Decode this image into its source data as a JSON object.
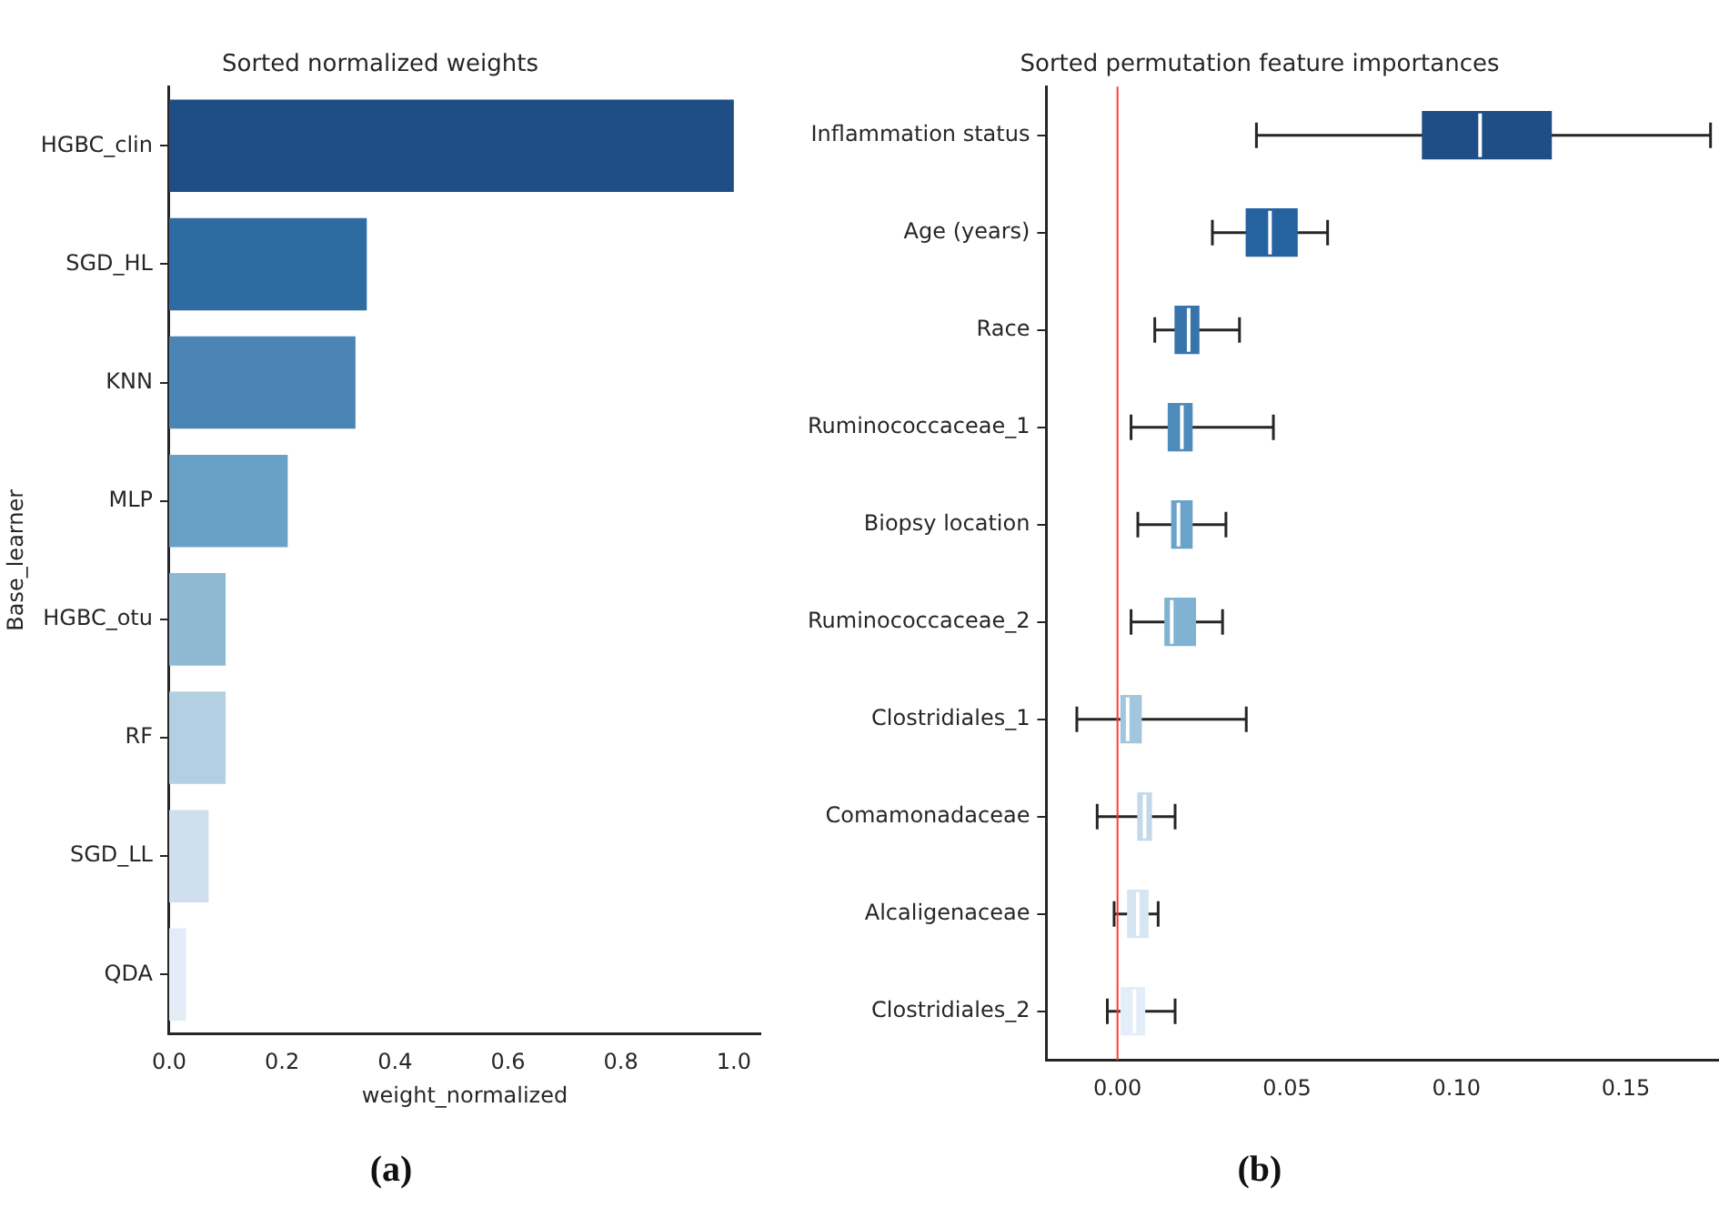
{
  "chart_data": [
    {
      "type": "bar",
      "orientation": "horizontal",
      "title": "Sorted normalized weights",
      "xlabel": "weight_normalized",
      "ylabel": "Base_learner",
      "categories": [
        "HGBC_clin",
        "SGD_HL",
        "KNN",
        "MLP",
        "HGBC_otu",
        "RF",
        "SGD_LL",
        "QDA"
      ],
      "values": [
        1.0,
        0.35,
        0.33,
        0.21,
        0.1,
        0.1,
        0.07,
        0.03
      ],
      "colors": [
        "#1f4e86",
        "#2d6ba0",
        "#4a85b5",
        "#68a0c6",
        "#8fb9d3",
        "#b3cfe2",
        "#cfdfee",
        "#e4edf7"
      ],
      "xlim": [
        0,
        1.047
      ],
      "xticks": [
        {
          "value": 0,
          "label": "0.0"
        },
        {
          "value": 0.2,
          "label": "0.2"
        },
        {
          "value": 0.4,
          "label": "0.4"
        },
        {
          "value": 0.6,
          "label": "0.6"
        },
        {
          "value": 0.8,
          "label": "0.8"
        },
        {
          "value": 1,
          "label": "1.0"
        }
      ],
      "grid": false,
      "legend": false,
      "annotations": [
        "(a)"
      ]
    },
    {
      "type": "box",
      "orientation": "horizontal",
      "title": "Sorted permutation feature importances",
      "categories": [
        "Inflammation status",
        "Age (years)",
        "Race",
        "Ruminococcaceae_1",
        "Biopsy location",
        "Ruminococcaceae_2",
        "Clostridiales_1",
        "Comamonadaceae",
        "Alcaligenaceae",
        "Clostridiales_2"
      ],
      "boxes": [
        {
          "low": 0.041,
          "q1": 0.09,
          "median": 0.107,
          "q3": 0.128,
          "high": 0.175
        },
        {
          "low": 0.028,
          "q1": 0.038,
          "median": 0.045,
          "q3": 0.053,
          "high": 0.062
        },
        {
          "low": 0.011,
          "q1": 0.017,
          "median": 0.021,
          "q3": 0.024,
          "high": 0.036
        },
        {
          "low": 0.004,
          "q1": 0.015,
          "median": 0.019,
          "q3": 0.022,
          "high": 0.046
        },
        {
          "low": 0.006,
          "q1": 0.016,
          "median": 0.018,
          "q3": 0.022,
          "high": 0.032
        },
        {
          "low": 0.004,
          "q1": 0.014,
          "median": 0.016,
          "q3": 0.023,
          "high": 0.031
        },
        {
          "low": -0.012,
          "q1": 0.001,
          "median": 0.003,
          "q3": 0.007,
          "high": 0.038
        },
        {
          "low": -0.006,
          "q1": 0.006,
          "median": 0.008,
          "q3": 0.01,
          "high": 0.017
        },
        {
          "low": -0.001,
          "q1": 0.003,
          "median": 0.006,
          "q3": 0.009,
          "high": 0.012
        },
        {
          "low": -0.003,
          "q1": 0.001,
          "median": 0.005,
          "q3": 0.008,
          "high": 0.017
        }
      ],
      "colors": [
        "#1f4e86",
        "#2462a0",
        "#3774ac",
        "#4d8bbb",
        "#6aa3ca",
        "#80b3d2",
        "#a3c6df",
        "#c3d9ea",
        "#d6e5f2",
        "#e4eef8"
      ],
      "xlim": [
        -0.021,
        0.1775
      ],
      "xticks": [
        {
          "value": 0,
          "label": "0.00"
        },
        {
          "value": 0.05,
          "label": "0.05"
        },
        {
          "value": 0.1,
          "label": "0.10"
        },
        {
          "value": 0.15,
          "label": "0.15"
        }
      ],
      "ref_lines": [
        {
          "axis": "x",
          "value": 0,
          "color": "#ff3b30"
        }
      ],
      "grid": false,
      "legend": false,
      "annotations": [
        "(b)"
      ]
    }
  ]
}
